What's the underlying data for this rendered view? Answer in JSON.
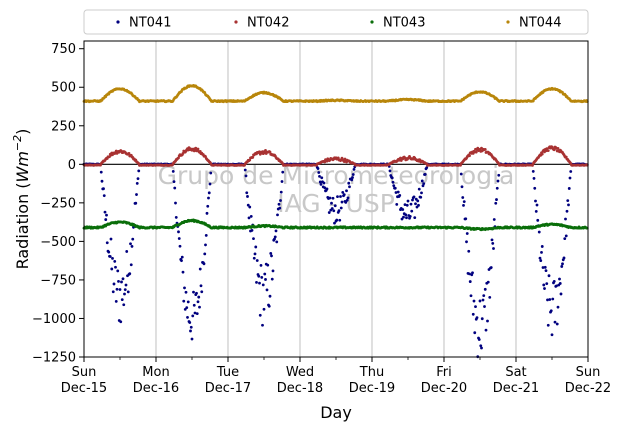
{
  "chart_data": {
    "type": "scatter",
    "xlabel": "Day",
    "ylabel_main": "Radiation (",
    "ylabel_unit": "Wm",
    "ylabel_exp": "−2",
    "ylabel_close": ")",
    "ylim": [
      -1250,
      800
    ],
    "yticks": [
      -1250,
      -1000,
      -750,
      -500,
      -250,
      0,
      250,
      500,
      750
    ],
    "ytick_labels": [
      "−1250",
      "−1000",
      "−750",
      "−500",
      "−250",
      "0",
      "250",
      "500",
      "750"
    ],
    "xlim": [
      "2019-12-15",
      "2019-12-22"
    ],
    "xticks": [
      {
        "date": "2019-12-15",
        "dow": "Sun",
        "label": "Dec-15"
      },
      {
        "date": "2019-12-16",
        "dow": "Mon",
        "label": "Dec-16"
      },
      {
        "date": "2019-12-17",
        "dow": "Tue",
        "label": "Dec-17"
      },
      {
        "date": "2019-12-18",
        "dow": "Wed",
        "label": "Dec-18"
      },
      {
        "date": "2019-12-19",
        "dow": "Thu",
        "label": "Dec-19"
      },
      {
        "date": "2019-12-20",
        "dow": "Fri",
        "label": "Dec-20"
      },
      {
        "date": "2019-12-21",
        "dow": "Sat",
        "label": "Dec-21"
      },
      {
        "date": "2019-12-22",
        "dow": "Sun",
        "label": "Dec-22"
      }
    ],
    "grid": "vertical",
    "legend_placement": "top-center",
    "watermark_line1": "Grupo de Micrometeorologia",
    "watermark_line2": "IAG - USP",
    "series": [
      {
        "name": "NT041",
        "color": "#00007f",
        "base": 0,
        "days": [
          {
            "date": "2019-12-15",
            "dip": -850,
            "spread": 0.5
          },
          {
            "date": "2019-12-16",
            "dip": -1000,
            "spread": 0.35
          },
          {
            "date": "2019-12-17",
            "dip": -850,
            "spread": 0.5
          },
          {
            "date": "2019-12-18",
            "dip": -300,
            "spread": 0.6
          },
          {
            "date": "2019-12-19",
            "dip": -330,
            "spread": 0.6
          },
          {
            "date": "2019-12-20",
            "dip": -1050,
            "spread": 0.45
          },
          {
            "date": "2019-12-21",
            "dip": -950,
            "spread": 0.45
          }
        ]
      },
      {
        "name": "NT042",
        "color": "#a83232",
        "base": 0,
        "days": [
          {
            "date": "2019-12-15",
            "peak": 85
          },
          {
            "date": "2019-12-16",
            "peak": 100
          },
          {
            "date": "2019-12-17",
            "peak": 80
          },
          {
            "date": "2019-12-18",
            "peak": 35
          },
          {
            "date": "2019-12-19",
            "peak": 40
          },
          {
            "date": "2019-12-20",
            "peak": 95
          },
          {
            "date": "2019-12-21",
            "peak": 105
          }
        ]
      },
      {
        "name": "NT043",
        "color": "#0a6e0a",
        "base": -410,
        "days": [
          {
            "date": "2019-12-15",
            "peak": 35
          },
          {
            "date": "2019-12-16",
            "peak": 45
          },
          {
            "date": "2019-12-17",
            "peak": 10
          },
          {
            "date": "2019-12-18",
            "peak": 0
          },
          {
            "date": "2019-12-19",
            "peak": 0
          },
          {
            "date": "2019-12-20",
            "peak": -10
          },
          {
            "date": "2019-12-21",
            "peak": 20
          }
        ]
      },
      {
        "name": "NT044",
        "color": "#b8860b",
        "base": 410,
        "days": [
          {
            "date": "2019-12-15",
            "peak": 80
          },
          {
            "date": "2019-12-16",
            "peak": 100
          },
          {
            "date": "2019-12-17",
            "peak": 55
          },
          {
            "date": "2019-12-18",
            "peak": 5
          },
          {
            "date": "2019-12-19",
            "peak": 10
          },
          {
            "date": "2019-12-20",
            "peak": 60
          },
          {
            "date": "2019-12-21",
            "peak": 80
          }
        ]
      }
    ]
  }
}
